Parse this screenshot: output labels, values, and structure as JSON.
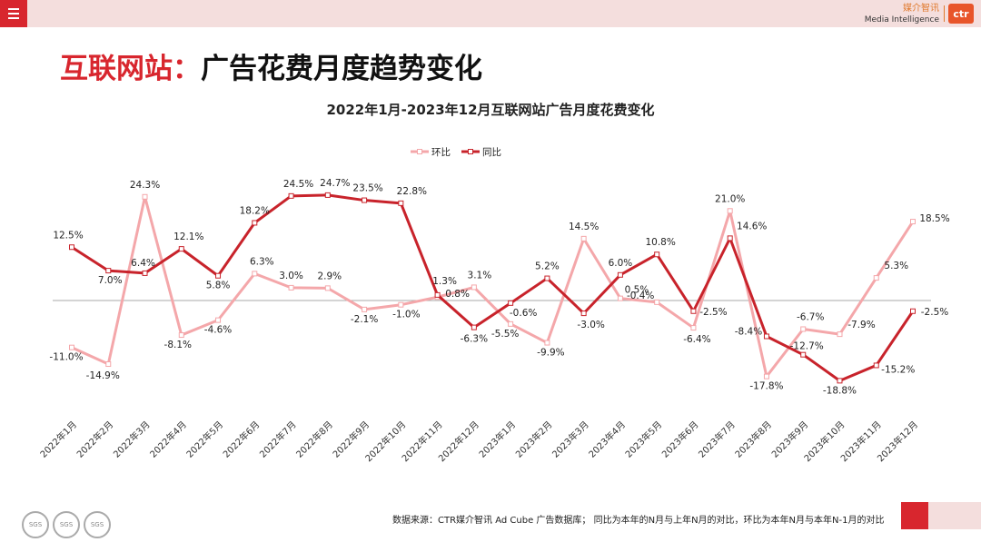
{
  "header": {
    "brand_cn": "媒介智讯",
    "brand_en": "Media Intelligence",
    "logo_text": "ctr"
  },
  "page_title_part1": "互联网站：",
  "page_title_part2": "广告花费月度趋势变化",
  "footer": {
    "source": "数据来源：CTR媒介智讯 Ad Cube 广告数据库； 同比为本年的N月与上年N月的对比，环比为本年N月与本年N-1月的对比"
  },
  "colors": {
    "accent": "#d8262e",
    "huanbi": "#f4a7aa",
    "tongbi": "#c8232b",
    "topbar": "#f4dedd"
  },
  "chart_data": {
    "type": "line",
    "title": "2022年1月-2023年12月互联网站广告月度花费变化",
    "legend_position": "top-center",
    "categories": [
      "2022年1月",
      "2022年2月",
      "2022年3月",
      "2022年4月",
      "2022年5月",
      "2022年6月",
      "2022年7月",
      "2022年8月",
      "2022年9月",
      "2022年10月",
      "2022年11月",
      "2022年12月",
      "2023年1月",
      "2023年2月",
      "2023年3月",
      "2023年4月",
      "2023年5月",
      "2023年6月",
      "2023年7月",
      "2023年8月",
      "2023年9月",
      "2023年10月",
      "2023年11月",
      "2023年12月"
    ],
    "series": [
      {
        "name": "环比",
        "values": [
          -11.0,
          -14.9,
          24.3,
          -8.1,
          -4.6,
          6.3,
          3.0,
          2.9,
          -2.1,
          -1.0,
          0.8,
          3.1,
          -5.5,
          -9.9,
          14.5,
          0.5,
          -0.4,
          -6.4,
          21.0,
          -17.8,
          -6.7,
          -7.9,
          5.3,
          18.5
        ],
        "labels": [
          "-11.0%",
          "-14.9%",
          "24.3%",
          "-8.1%",
          "-4.6%",
          "6.3%",
          "3.0%",
          "2.9%",
          "-2.1%",
          "-1.0%",
          "0.8%",
          "3.1%",
          "-5.5%",
          "-9.9%",
          "14.5%",
          "0.5%",
          "-0.4%",
          "-6.4%",
          "21.0%",
          "-17.8%",
          "-6.7%",
          "-7.9%",
          "5.3%",
          "18.5%"
        ]
      },
      {
        "name": "同比",
        "values": [
          12.5,
          7.0,
          6.4,
          12.1,
          5.8,
          18.2,
          24.5,
          24.7,
          23.5,
          22.8,
          1.3,
          -6.3,
          -0.6,
          5.2,
          -3.0,
          6.0,
          10.8,
          -2.5,
          14.6,
          -8.4,
          -12.7,
          -18.8,
          -15.2,
          -2.5
        ],
        "labels": [
          "12.5%",
          "7.0%",
          "6.4%",
          "12.1%",
          "5.8%",
          "18.2%",
          "24.5%",
          "24.7%",
          "23.5%",
          "22.8%",
          "1.3%",
          "-6.3%",
          "-0.6%",
          "5.2%",
          "-3.0%",
          "6.0%",
          "10.8%",
          "-2.5%",
          "14.6%",
          "-8.4%",
          "-12.7%",
          "-18.8%",
          "-15.2%",
          "-2.5%"
        ]
      }
    ],
    "ylim": [
      -25,
      30
    ],
    "grid": false
  }
}
